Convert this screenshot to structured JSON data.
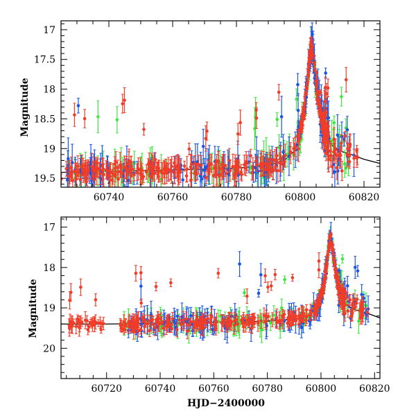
{
  "colors": {
    "blue": "#1a55e6",
    "green": "#3ee83e",
    "red": "#f03c28",
    "model": "#000000",
    "axes": "#000000"
  },
  "chart_data": [
    {
      "type": "scatter",
      "panel": "top",
      "xlabel": "",
      "ylabel": "Magnitude",
      "xlim": [
        60725,
        60825
      ],
      "ylim": [
        19.65,
        16.85
      ],
      "y_inverted": true,
      "xticks": [
        60740,
        60760,
        60780,
        60800,
        60820
      ],
      "yticks": [
        17,
        17.5,
        18,
        18.5,
        19,
        19.5
      ],
      "ytick_labels": [
        "17",
        "17.5",
        "18",
        "18.5",
        "19",
        "19.5"
      ],
      "series_description": "Three colored photometric series (blue, green, red) with error bars plus a black model curve; baseline near 19.3–19.4 mag with a sharp brightening peaking at ~17.1 mag near HJD-2400000 = 60803.5.",
      "model_curve": {
        "x": [
          60725,
          60740,
          60760,
          60780,
          60790,
          60795,
          60798,
          60800,
          60801,
          60802,
          60803,
          60803.5,
          60804,
          60805,
          60806,
          60808,
          60810,
          60813,
          60816,
          60820,
          60825
        ],
        "y": [
          19.4,
          19.38,
          19.36,
          19.33,
          19.28,
          19.2,
          19.05,
          18.75,
          18.45,
          18.0,
          17.45,
          17.2,
          17.45,
          17.9,
          18.3,
          18.75,
          18.95,
          19.05,
          19.1,
          19.18,
          19.25
        ]
      }
    },
    {
      "type": "scatter",
      "panel": "bottom",
      "xlabel": "HJD−2400000",
      "ylabel": "Magnitude",
      "xlim": [
        60703,
        60822
      ],
      "ylim": [
        20.75,
        16.75
      ],
      "y_inverted": true,
      "xticks": [
        60720,
        60740,
        60760,
        60780,
        60800,
        60820
      ],
      "yticks": [
        17,
        18,
        19,
        20
      ],
      "ytick_labels": [
        "17",
        "18",
        "19",
        "20"
      ],
      "series_description": "Same three colored series over a longer baseline (early red points near 60706–60718 at ~19.0–19.8 mag); peak ~17.15 mag near 60803.5.",
      "model_curve": {
        "x": [
          60703,
          60720,
          60740,
          60760,
          60780,
          60790,
          60795,
          60798,
          60800,
          60801,
          60802,
          60803,
          60803.5,
          60804,
          60805,
          60806,
          60808,
          60810,
          60813,
          60816,
          60822
        ],
        "y": [
          19.4,
          19.4,
          19.38,
          19.36,
          19.33,
          19.28,
          19.2,
          19.05,
          18.75,
          18.45,
          18.0,
          17.45,
          17.2,
          17.45,
          17.9,
          18.3,
          18.75,
          18.95,
          19.05,
          19.1,
          19.25
        ]
      }
    }
  ],
  "tick_text": {
    "top_x": [
      "60740",
      "60760",
      "60780",
      "60800",
      "60820"
    ],
    "bottom_x": [
      "60720",
      "60740",
      "60760",
      "60780",
      "60800",
      "60820"
    ]
  }
}
